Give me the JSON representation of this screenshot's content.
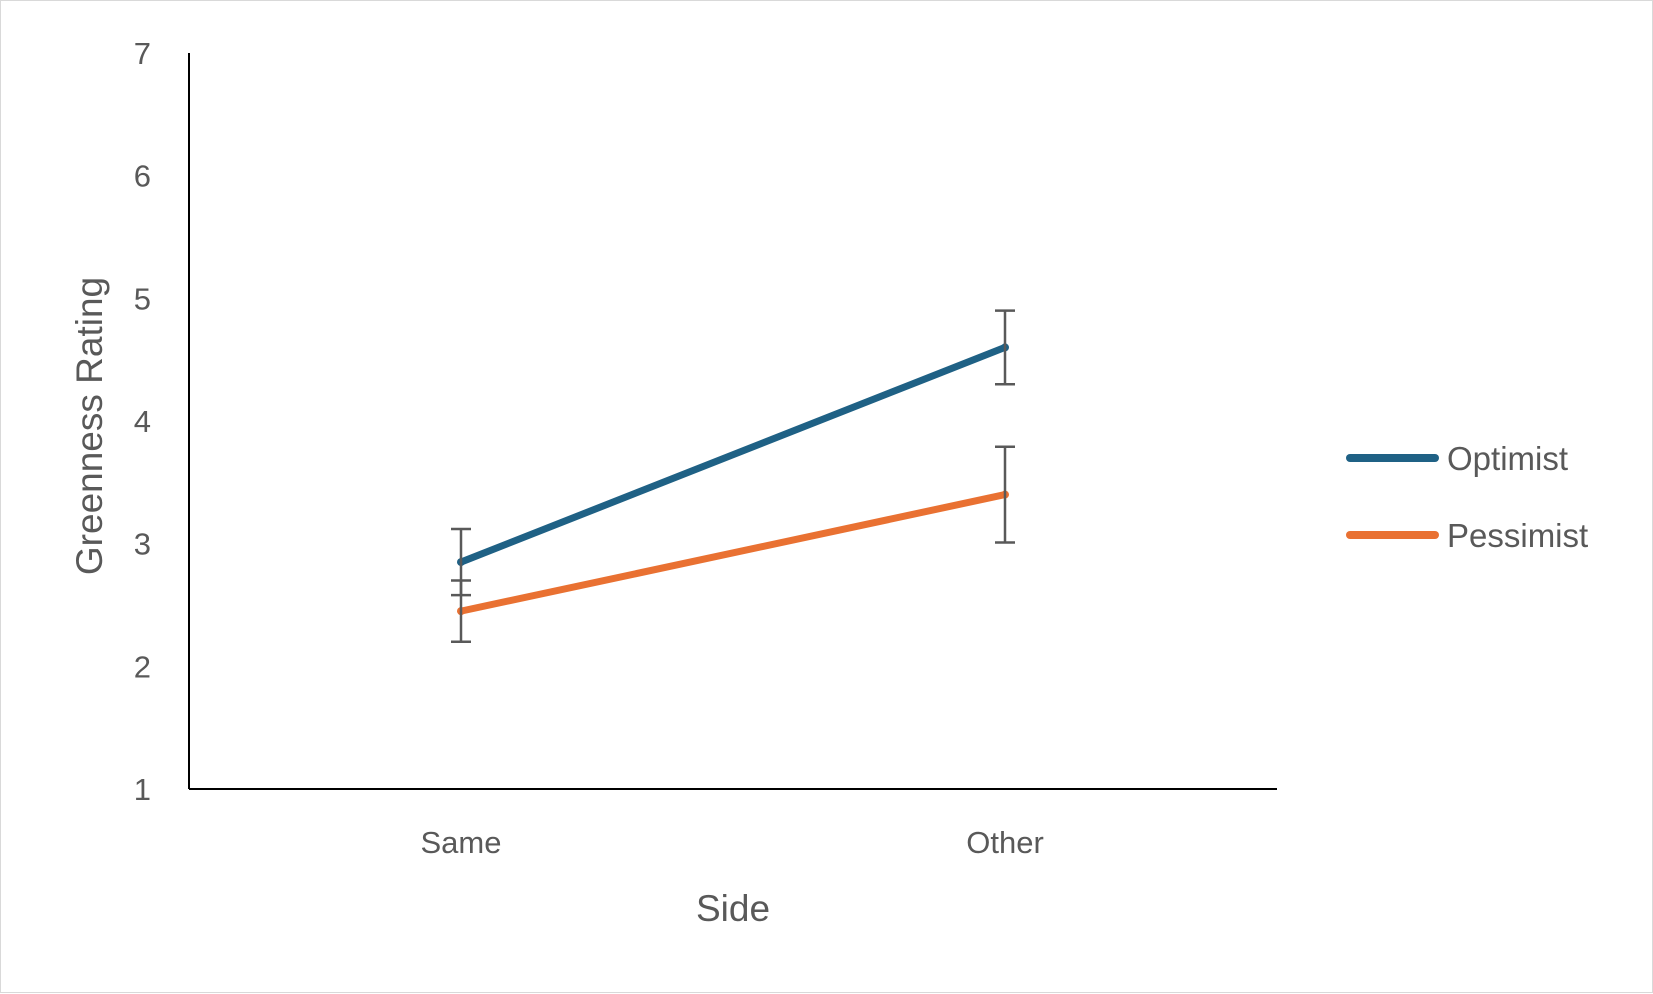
{
  "chart_data": {
    "type": "line",
    "categories": [
      "Same",
      "Other"
    ],
    "series": [
      {
        "name": "Optimist",
        "values": [
          2.85,
          4.6
        ],
        "error": [
          0.27,
          0.3
        ],
        "color": "#1f6185"
      },
      {
        "name": "Pessimist",
        "values": [
          2.45,
          3.4
        ],
        "error": [
          0.25,
          0.39
        ],
        "color": "#e97132"
      }
    ],
    "xlabel": "Side",
    "ylabel": "Greenness Rating",
    "ylim": [
      1,
      7
    ],
    "yticks": [
      "1",
      "2",
      "3",
      "4",
      "5",
      "6",
      "7"
    ],
    "grid": false,
    "legend_position": "right"
  }
}
